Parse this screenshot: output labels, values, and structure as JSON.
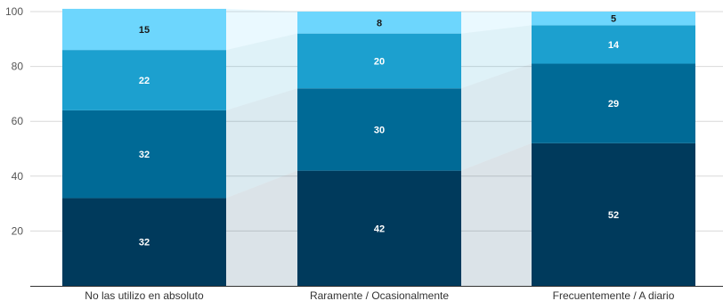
{
  "chart_data": {
    "type": "bar",
    "stacked": true,
    "categories": [
      "No las utilizo en absoluto",
      "Raramente / Ocasionalmente",
      "Frecuentemente / A diario"
    ],
    "series": [
      {
        "values": [
          32,
          42,
          52
        ],
        "color": "#003a5c",
        "label_color": "#ffffff"
      },
      {
        "values": [
          32,
          30,
          29
        ],
        "color": "#006a96",
        "label_color": "#ffffff"
      },
      {
        "values": [
          22,
          20,
          14
        ],
        "color": "#1ca0cf",
        "label_color": "#ffffff"
      },
      {
        "values": [
          15,
          8,
          5
        ],
        "color": "#6dd6fd",
        "label_color": "#1a1a1a"
      }
    ],
    "ylim": [
      0,
      100
    ],
    "yticks": [
      20,
      40,
      60,
      80,
      100
    ],
    "grid": true,
    "legend": "none",
    "connectors": true
  }
}
